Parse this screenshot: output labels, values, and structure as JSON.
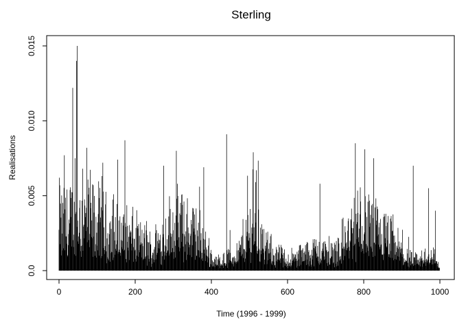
{
  "chart_data": {
    "type": "bar",
    "title": "Sterling",
    "xlabel": "Time (1996 - 1999)",
    "ylabel": "Realisations",
    "xlim": [
      0,
      1000
    ],
    "ylim": [
      0,
      0.015
    ],
    "x_ticks": [
      0,
      200,
      400,
      600,
      800,
      1000
    ],
    "y_ticks": [
      0.0,
      0.005,
      0.01,
      0.015
    ],
    "x_tick_labels": [
      "0",
      "200",
      "400",
      "600",
      "800",
      "1000"
    ],
    "y_tick_labels": [
      "0.0",
      "0.005",
      "0.010",
      "0.015"
    ],
    "n_points": 1000,
    "grid": false,
    "bar_color": "#000000",
    "peaks": [
      {
        "x": 1,
        "y": 0.0062
      },
      {
        "x": 14,
        "y": 0.0077
      },
      {
        "x": 36,
        "y": 0.0122
      },
      {
        "x": 46,
        "y": 0.014
      },
      {
        "x": 48,
        "y": 0.015
      },
      {
        "x": 62,
        "y": 0.0068
      },
      {
        "x": 73,
        "y": 0.0082
      },
      {
        "x": 115,
        "y": 0.0072
      },
      {
        "x": 173,
        "y": 0.0087
      },
      {
        "x": 275,
        "y": 0.007
      },
      {
        "x": 308,
        "y": 0.008
      },
      {
        "x": 380,
        "y": 0.0069
      },
      {
        "x": 440,
        "y": 0.0091
      },
      {
        "x": 510,
        "y": 0.0079
      },
      {
        "x": 518,
        "y": 0.0067
      },
      {
        "x": 685,
        "y": 0.0058
      },
      {
        "x": 778,
        "y": 0.0085
      },
      {
        "x": 803,
        "y": 0.0081
      },
      {
        "x": 930,
        "y": 0.007
      },
      {
        "x": 970,
        "y": 0.0055
      },
      {
        "x": 988,
        "y": 0.004
      }
    ],
    "level_profile": [
      {
        "x": 0,
        "y": 0.0032
      },
      {
        "x": 60,
        "y": 0.0042
      },
      {
        "x": 120,
        "y": 0.003
      },
      {
        "x": 180,
        "y": 0.0026
      },
      {
        "x": 240,
        "y": 0.0016
      },
      {
        "x": 300,
        "y": 0.0033
      },
      {
        "x": 360,
        "y": 0.0028
      },
      {
        "x": 410,
        "y": 0.0006
      },
      {
        "x": 470,
        "y": 0.0012
      },
      {
        "x": 515,
        "y": 0.004
      },
      {
        "x": 540,
        "y": 0.0016
      },
      {
        "x": 600,
        "y": 0.0008
      },
      {
        "x": 680,
        "y": 0.0015
      },
      {
        "x": 720,
        "y": 0.0013
      },
      {
        "x": 790,
        "y": 0.0034
      },
      {
        "x": 860,
        "y": 0.0024
      },
      {
        "x": 930,
        "y": 0.0006
      },
      {
        "x": 980,
        "y": 0.0012
      },
      {
        "x": 1000,
        "y": 0.0003
      }
    ]
  }
}
